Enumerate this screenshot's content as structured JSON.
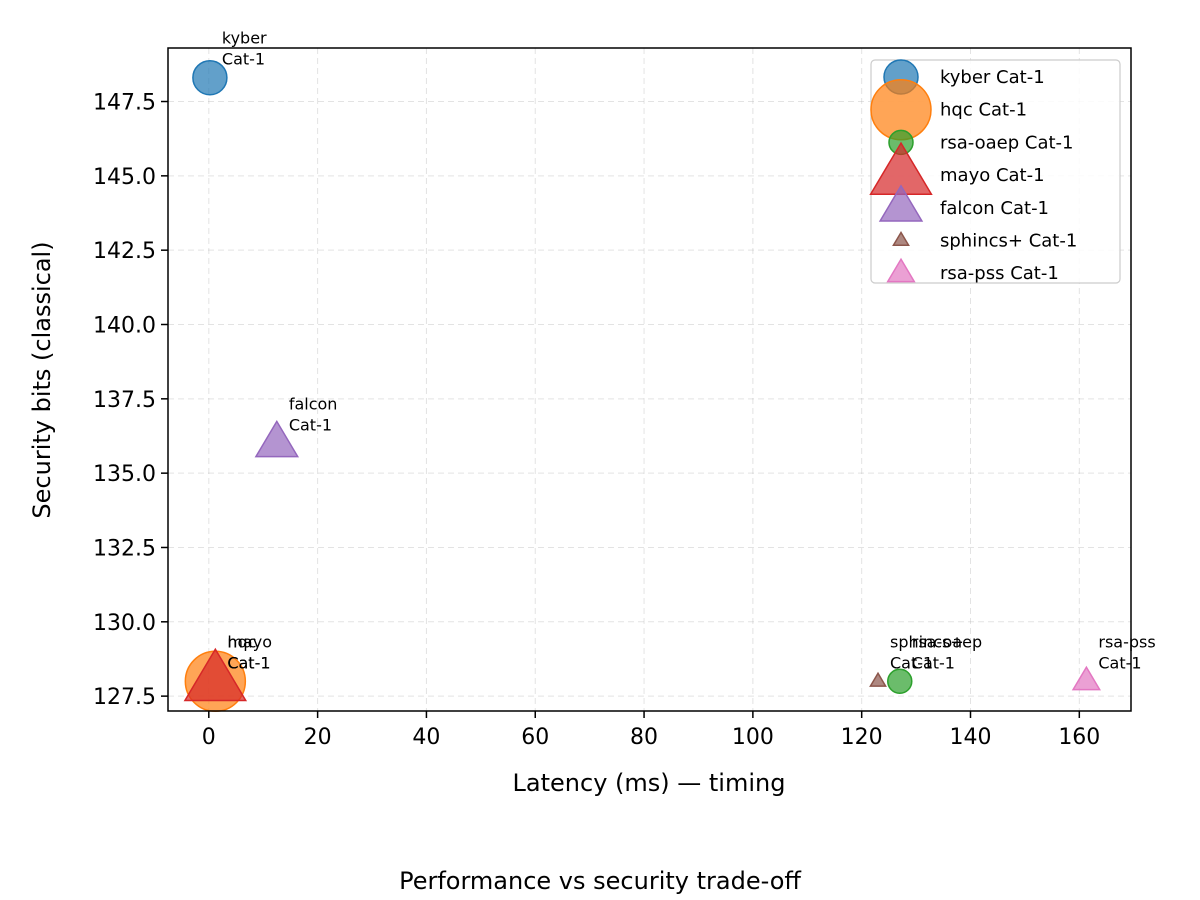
{
  "chart_data": {
    "type": "scatter",
    "title": "",
    "caption": "Performance vs security trade-off",
    "xlabel": "Latency (ms) — timing",
    "ylabel": "Security bits (classical)",
    "xlim": [
      -7.5,
      169.5
    ],
    "ylim": [
      127.0,
      149.3
    ],
    "xticks": [
      0,
      20,
      40,
      60,
      80,
      100,
      120,
      140,
      160
    ],
    "yticks": [
      127.5,
      130.0,
      132.5,
      135.0,
      137.5,
      140.0,
      142.5,
      145.0,
      147.5
    ],
    "grid": true,
    "legend_position": "top-right",
    "series": [
      {
        "name": "kyber Cat-1",
        "marker": "circle",
        "size": 17,
        "color": "#1f77b4",
        "annotation": [
          "kyber",
          "Cat-1"
        ],
        "x": 0.2,
        "y": 148.3
      },
      {
        "name": "hqc Cat-1",
        "marker": "circle",
        "size": 30,
        "color": "#ff7f0e",
        "annotation": [
          "hqc",
          "Cat-1"
        ],
        "x": 1.2,
        "y": 128.0
      },
      {
        "name": "rsa-oaep Cat-1",
        "marker": "circle",
        "size": 12,
        "color": "#2ca02c",
        "annotation": [
          "rsa-oaep",
          "Cat-1"
        ],
        "x": 127.0,
        "y": 128.0
      },
      {
        "name": "mayo Cat-1",
        "marker": "triangle",
        "size": 32,
        "color": "#d62728",
        "annotation": [
          "mayo",
          "Cat-1"
        ],
        "x": 1.2,
        "y": 128.0
      },
      {
        "name": "falcon Cat-1",
        "marker": "triangle",
        "size": 22,
        "color": "#9467bd",
        "annotation": [
          "falcon",
          "Cat-1"
        ],
        "x": 12.5,
        "y": 136.0
      },
      {
        "name": "sphincs+ Cat-1",
        "marker": "triangle",
        "size": 8,
        "color": "#8c564b",
        "annotation": [
          "sphincs+",
          "Cat-1"
        ],
        "x": 123.0,
        "y": 128.0
      },
      {
        "name": "rsa-pss Cat-1",
        "marker": "triangle",
        "size": 14,
        "color": "#e377c2",
        "annotation": [
          "rsa-pss",
          "Cat-1"
        ],
        "x": 161.3,
        "y": 128.0
      }
    ]
  }
}
